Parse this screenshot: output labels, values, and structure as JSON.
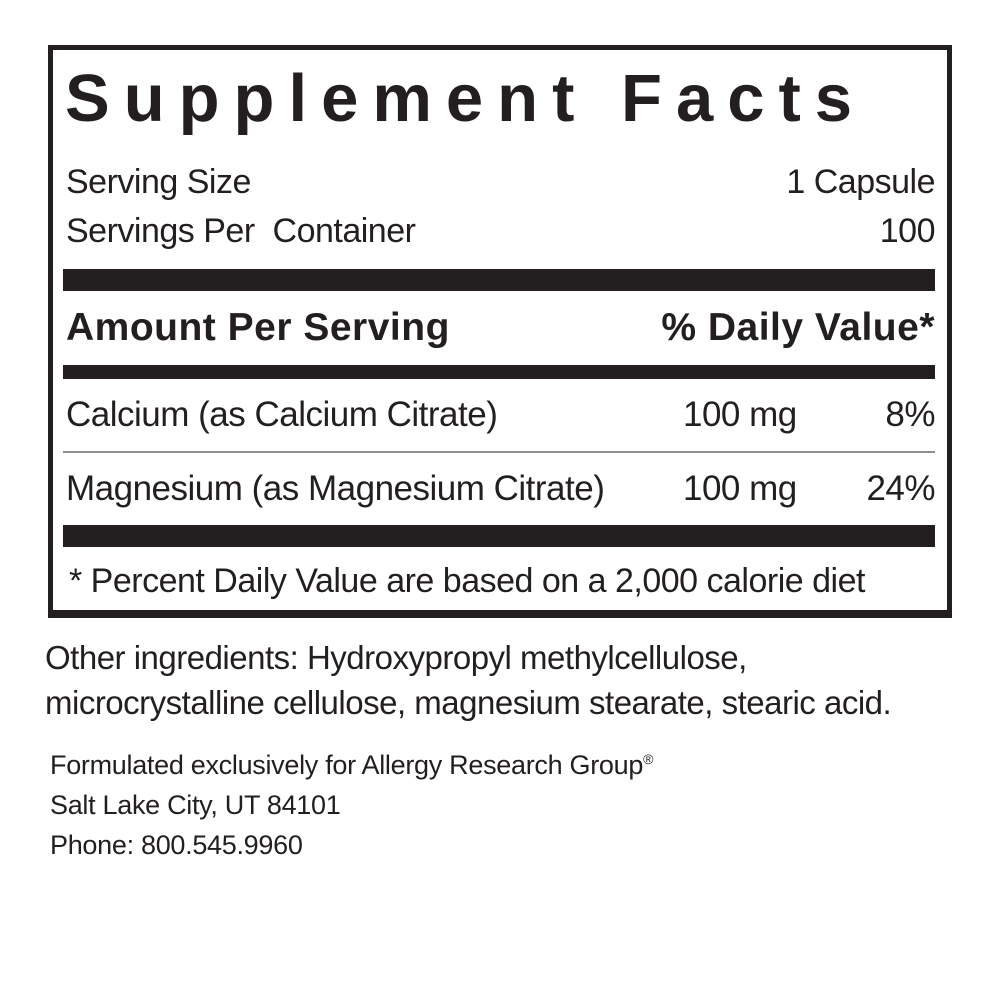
{
  "label": {
    "title": "Supplement Facts",
    "serving_size": {
      "label": "Serving Size",
      "value": "1 Capsule"
    },
    "servings_per_container": {
      "label": "Servings Per  Container",
      "value": "100"
    },
    "columns": {
      "amount_header": "Amount Per Serving",
      "daily_value_header": "% Daily Value*"
    },
    "rows": [
      {
        "name": "Calcium (as Calcium Citrate)",
        "amount": "100 mg",
        "dv": "8%"
      },
      {
        "name": "Magnesium (as Magnesium Citrate)",
        "amount": "100 mg",
        "dv": "24%"
      }
    ],
    "footnote": "* Percent Daily Value are based on a 2,000 calorie diet"
  },
  "other_ingredients": "Other ingredients: Hydroxypropyl methylcellulose, microcrystalline cellulose, magnesium stearate, stearic acid.",
  "footer": {
    "line1": "Formulated exclusively for Allergy Research Group",
    "reg_mark": "®",
    "line2": "Salt Lake City, UT 84101",
    "line3": "Phone: 800.545.9960"
  },
  "colors": {
    "ink": "#231f20",
    "divider": "#8f8f8f",
    "background": "#ffffff"
  }
}
